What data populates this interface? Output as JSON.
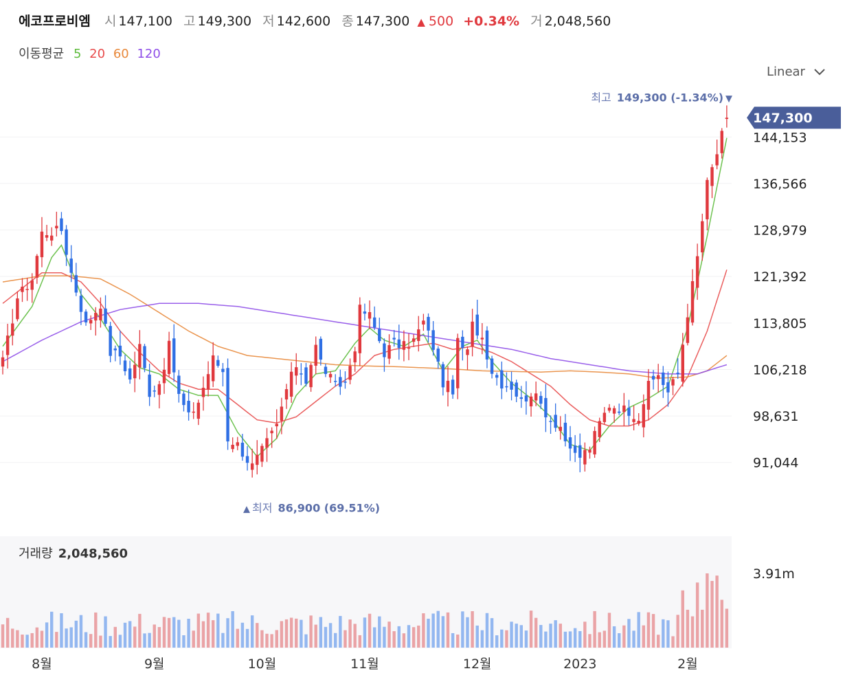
{
  "header": {
    "name": "에코프로비엠",
    "open_label": "시",
    "open": "147,100",
    "high_label": "고",
    "high": "149,300",
    "low_label": "저",
    "low": "142,600",
    "close_label": "종",
    "close": "147,300",
    "change_arrow": "▲",
    "change": "500",
    "change_pct": "+0.34%",
    "volume_label": "거",
    "volume": "2,048,560"
  },
  "ma_legend": {
    "title": "이동평균",
    "items": [
      {
        "label": "5",
        "color": "#5dbb3c"
      },
      {
        "label": "20",
        "color": "#e84b4b"
      },
      {
        "label": "60",
        "color": "#e8883a"
      },
      {
        "label": "120",
        "color": "#8e4ee8"
      }
    ]
  },
  "scale_selector": {
    "label": "Linear"
  },
  "colors": {
    "up": "#e0393e",
    "down": "#2f6fe4",
    "tag": "#4a5e9a"
  },
  "chart_data": {
    "type": "candlestick",
    "price_axis": {
      "min": 83500,
      "max": 150800,
      "ticks": [
        "91,044",
        "98,631",
        "106,218",
        "113,805",
        "121,392",
        "128,979",
        "136,566",
        "144,153"
      ]
    },
    "current_price_label": "147,300",
    "high_annotation": {
      "prefix": "최고",
      "text": "149,300 (-1.34%)",
      "arrow": "▼",
      "value": 149300
    },
    "low_annotation": {
      "prefix": "최저",
      "text": "86,900 (69.51%)",
      "arrow": "▲",
      "value": 86900
    },
    "x_labels": [
      "8월",
      "9월",
      "10월",
      "11월",
      "12월",
      "2023",
      "2월"
    ],
    "x_label_positions": [
      8,
      31,
      53,
      74,
      97,
      118,
      140
    ],
    "close_anchors": [
      [
        0,
        107500
      ],
      [
        3,
        118000
      ],
      [
        6,
        121000
      ],
      [
        8,
        128500
      ],
      [
        12,
        129000
      ],
      [
        14,
        122000
      ],
      [
        17,
        113500
      ],
      [
        20,
        117000
      ],
      [
        22,
        109000
      ],
      [
        24,
        108500
      ],
      [
        26,
        104500
      ],
      [
        28,
        110000
      ],
      [
        30,
        102500
      ],
      [
        32,
        104000
      ],
      [
        34,
        110000
      ],
      [
        36,
        102000
      ],
      [
        38,
        98500
      ],
      [
        40,
        101000
      ],
      [
        43,
        108000
      ],
      [
        45,
        106000
      ],
      [
        46,
        95000
      ],
      [
        48,
        94000
      ],
      [
        50,
        91500
      ],
      [
        51,
        90500
      ],
      [
        53,
        93000
      ],
      [
        56,
        97000
      ],
      [
        58,
        103000
      ],
      [
        60,
        107000
      ],
      [
        62,
        104500
      ],
      [
        64,
        110000
      ],
      [
        65,
        107500
      ],
      [
        66,
        106000
      ],
      [
        68,
        103500
      ],
      [
        70,
        104000
      ],
      [
        72,
        110000
      ],
      [
        73,
        116000
      ],
      [
        75,
        115000
      ],
      [
        78,
        109000
      ],
      [
        80,
        110500
      ],
      [
        82,
        110000
      ],
      [
        84,
        111000
      ],
      [
        86,
        114000
      ],
      [
        88,
        110000
      ],
      [
        90,
        104000
      ],
      [
        92,
        103000
      ],
      [
        93,
        110500
      ],
      [
        95,
        109000
      ],
      [
        96,
        113500
      ],
      [
        98,
        111500
      ],
      [
        100,
        106000
      ],
      [
        102,
        104000
      ],
      [
        104,
        103500
      ],
      [
        106,
        101000
      ],
      [
        108,
        102500
      ],
      [
        110,
        100500
      ],
      [
        112,
        98000
      ],
      [
        114,
        97000
      ],
      [
        116,
        92500
      ],
      [
        118,
        92000
      ],
      [
        120,
        93500
      ],
      [
        122,
        97500
      ],
      [
        124,
        100500
      ],
      [
        126,
        100000
      ],
      [
        128,
        99500
      ],
      [
        130,
        98500
      ],
      [
        132,
        103500
      ],
      [
        134,
        105500
      ],
      [
        136,
        102500
      ],
      [
        138,
        105500
      ],
      [
        140,
        115500
      ],
      [
        142,
        124500
      ],
      [
        144,
        136500
      ],
      [
        146,
        141500
      ],
      [
        148,
        147300
      ]
    ],
    "candles_count": 149,
    "volume": {
      "label": "거래량",
      "value": "2,048,560",
      "max_label": "3.91m",
      "max": 3910000
    },
    "ma_curves": {
      "5": [
        [
          0,
          110000
        ],
        [
          6,
          116500
        ],
        [
          10,
          124500
        ],
        [
          12,
          126500
        ],
        [
          16,
          118500
        ],
        [
          20,
          114500
        ],
        [
          24,
          109500
        ],
        [
          28,
          106500
        ],
        [
          32,
          105500
        ],
        [
          36,
          103000
        ],
        [
          40,
          102000
        ],
        [
          44,
          102000
        ],
        [
          48,
          96000
        ],
        [
          52,
          92000
        ],
        [
          56,
          95000
        ],
        [
          60,
          102000
        ],
        [
          64,
          105500
        ],
        [
          68,
          106000
        ],
        [
          72,
          110500
        ],
        [
          75,
          113000
        ],
        [
          78,
          111000
        ],
        [
          82,
          110000
        ],
        [
          86,
          112000
        ],
        [
          90,
          106000
        ],
        [
          94,
          110000
        ],
        [
          97,
          111000
        ],
        [
          100,
          107500
        ],
        [
          104,
          104000
        ],
        [
          108,
          101500
        ],
        [
          112,
          98500
        ],
        [
          116,
          94000
        ],
        [
          120,
          93000
        ],
        [
          124,
          97000
        ],
        [
          128,
          100000
        ],
        [
          132,
          101500
        ],
        [
          136,
          103500
        ],
        [
          140,
          113000
        ],
        [
          144,
          128000
        ],
        [
          148,
          144000
        ]
      ],
      "20": [
        [
          0,
          117000
        ],
        [
          8,
          122000
        ],
        [
          12,
          122000
        ],
        [
          16,
          120500
        ],
        [
          20,
          117000
        ],
        [
          24,
          112500
        ],
        [
          28,
          109000
        ],
        [
          32,
          106000
        ],
        [
          36,
          104000
        ],
        [
          40,
          103000
        ],
        [
          44,
          103000
        ],
        [
          48,
          100500
        ],
        [
          52,
          98000
        ],
        [
          56,
          97500
        ],
        [
          60,
          98500
        ],
        [
          64,
          101000
        ],
        [
          68,
          103500
        ],
        [
          72,
          105500
        ],
        [
          76,
          108500
        ],
        [
          80,
          109500
        ],
        [
          84,
          110000
        ],
        [
          88,
          110500
        ],
        [
          92,
          109500
        ],
        [
          96,
          110000
        ],
        [
          100,
          109000
        ],
        [
          104,
          107500
        ],
        [
          108,
          105500
        ],
        [
          112,
          103500
        ],
        [
          116,
          100500
        ],
        [
          120,
          98000
        ],
        [
          124,
          97000
        ],
        [
          128,
          97000
        ],
        [
          132,
          98000
        ],
        [
          136,
          100500
        ],
        [
          140,
          105000
        ],
        [
          144,
          112500
        ],
        [
          148,
          122500
        ]
      ],
      "60": [
        [
          0,
          120500
        ],
        [
          8,
          121500
        ],
        [
          14,
          121500
        ],
        [
          20,
          121000
        ],
        [
          26,
          118500
        ],
        [
          32,
          115500
        ],
        [
          38,
          112500
        ],
        [
          44,
          110000
        ],
        [
          50,
          108500
        ],
        [
          56,
          108000
        ],
        [
          62,
          107500
        ],
        [
          68,
          107000
        ],
        [
          74,
          106800
        ],
        [
          80,
          106700
        ],
        [
          86,
          106500
        ],
        [
          92,
          106300
        ],
        [
          98,
          106000
        ],
        [
          104,
          105900
        ],
        [
          110,
          105800
        ],
        [
          116,
          106000
        ],
        [
          122,
          105800
        ],
        [
          128,
          105500
        ],
        [
          134,
          104800
        ],
        [
          140,
          105000
        ],
        [
          144,
          106000
        ],
        [
          148,
          108500
        ]
      ],
      "120": [
        [
          0,
          107500
        ],
        [
          8,
          111000
        ],
        [
          16,
          114000
        ],
        [
          24,
          116000
        ],
        [
          32,
          117000
        ],
        [
          40,
          117000
        ],
        [
          48,
          116500
        ],
        [
          56,
          115500
        ],
        [
          64,
          114500
        ],
        [
          72,
          113500
        ],
        [
          80,
          112500
        ],
        [
          88,
          111500
        ],
        [
          96,
          110500
        ],
        [
          104,
          109500
        ],
        [
          112,
          108000
        ],
        [
          120,
          107000
        ],
        [
          128,
          106000
        ],
        [
          136,
          105500
        ],
        [
          142,
          105500
        ],
        [
          148,
          107000
        ]
      ]
    }
  }
}
